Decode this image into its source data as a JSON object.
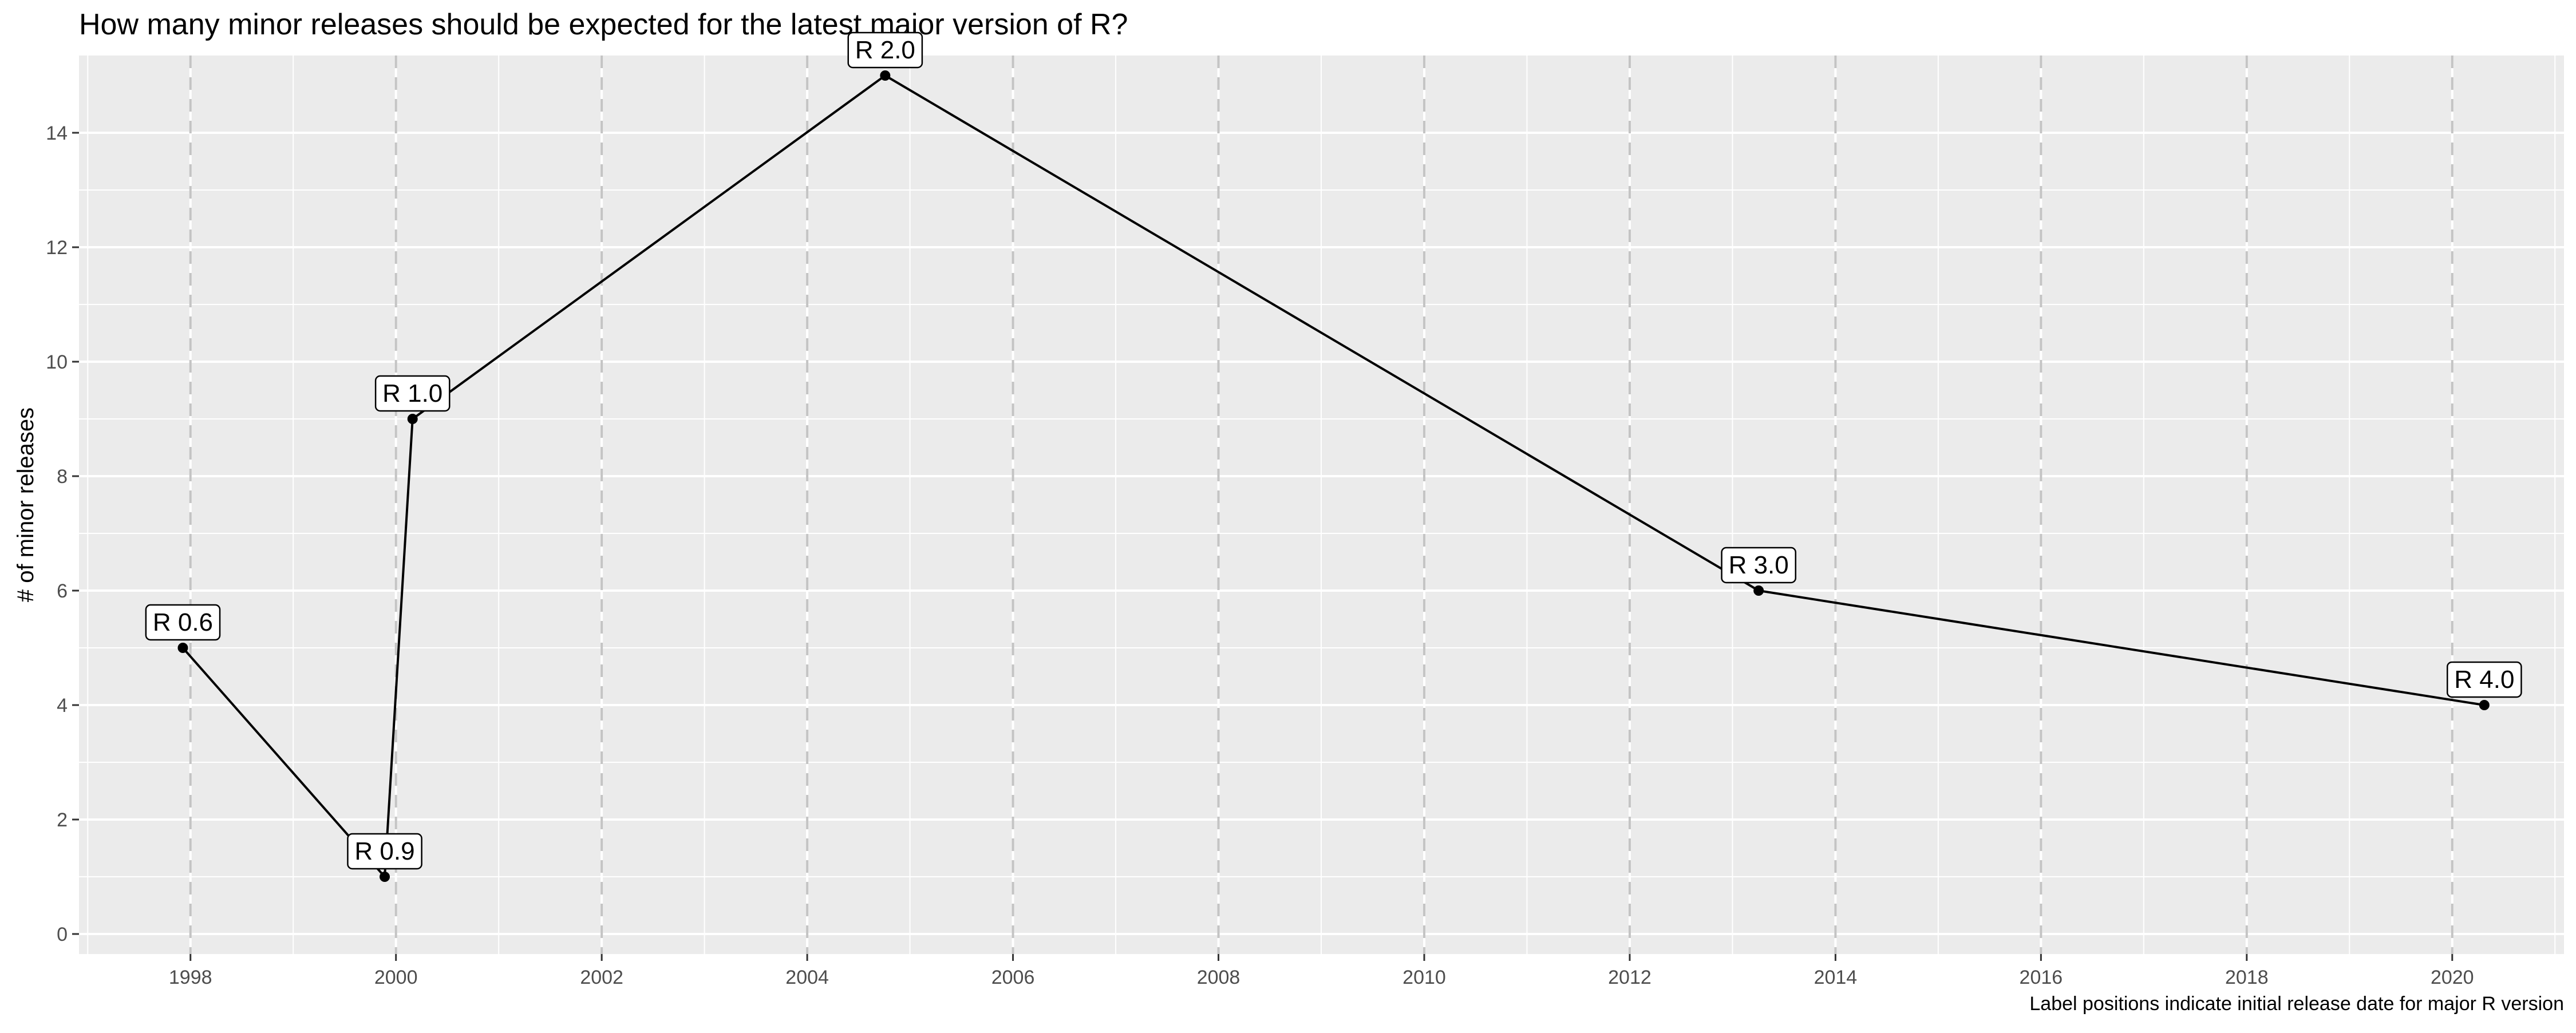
{
  "chart_data": {
    "type": "line",
    "title": "How many minor releases should be expected for the latest major version of R?",
    "xlabel": "",
    "ylabel": "# of minor releases",
    "caption": "Label positions indicate initial release date for major R version",
    "xlim": [
      "1996-12-01",
      "2021-02-01"
    ],
    "ylim": [
      -0.35,
      15.35
    ],
    "x_ticks": [
      "1998-01-01",
      "2000-01-01",
      "2002-01-01",
      "2004-01-01",
      "2006-01-01",
      "2008-01-01",
      "2010-01-01",
      "2012-01-01",
      "2014-01-01",
      "2016-01-01",
      "2018-01-01",
      "2020-01-01"
    ],
    "x_tick_labels": [
      "1998",
      "2000",
      "2002",
      "2004",
      "2006",
      "2008",
      "2010",
      "2012",
      "2014",
      "2016",
      "2018",
      "2020"
    ],
    "y_ticks": [
      0,
      2,
      4,
      6,
      8,
      10,
      12,
      14
    ],
    "y_tick_labels": [
      "0",
      "2",
      "4",
      "6",
      "8",
      "10",
      "12",
      "14"
    ],
    "vertical_dashed_lines": [
      "1998-01-01",
      "2000-01-01",
      "2002-01-01",
      "2004-01-01",
      "2006-01-01",
      "2008-01-01",
      "2010-01-01",
      "2012-01-01",
      "2014-01-01",
      "2016-01-01",
      "2018-01-01",
      "2020-01-01"
    ],
    "grid": true,
    "series": [
      {
        "points": [
          {
            "x": "1997-12-05",
            "y": 5,
            "label": "R 0.6"
          },
          {
            "x": "1999-11-22",
            "y": 1,
            "label": "R 0.9"
          },
          {
            "x": "2000-02-29",
            "y": 9,
            "label": "R 1.0"
          },
          {
            "x": "2004-10-04",
            "y": 15,
            "label": "R 2.0"
          },
          {
            "x": "2013-04-03",
            "y": 6,
            "label": "R 3.0"
          },
          {
            "x": "2020-04-24",
            "y": 4,
            "label": "R 4.0"
          }
        ]
      }
    ]
  }
}
